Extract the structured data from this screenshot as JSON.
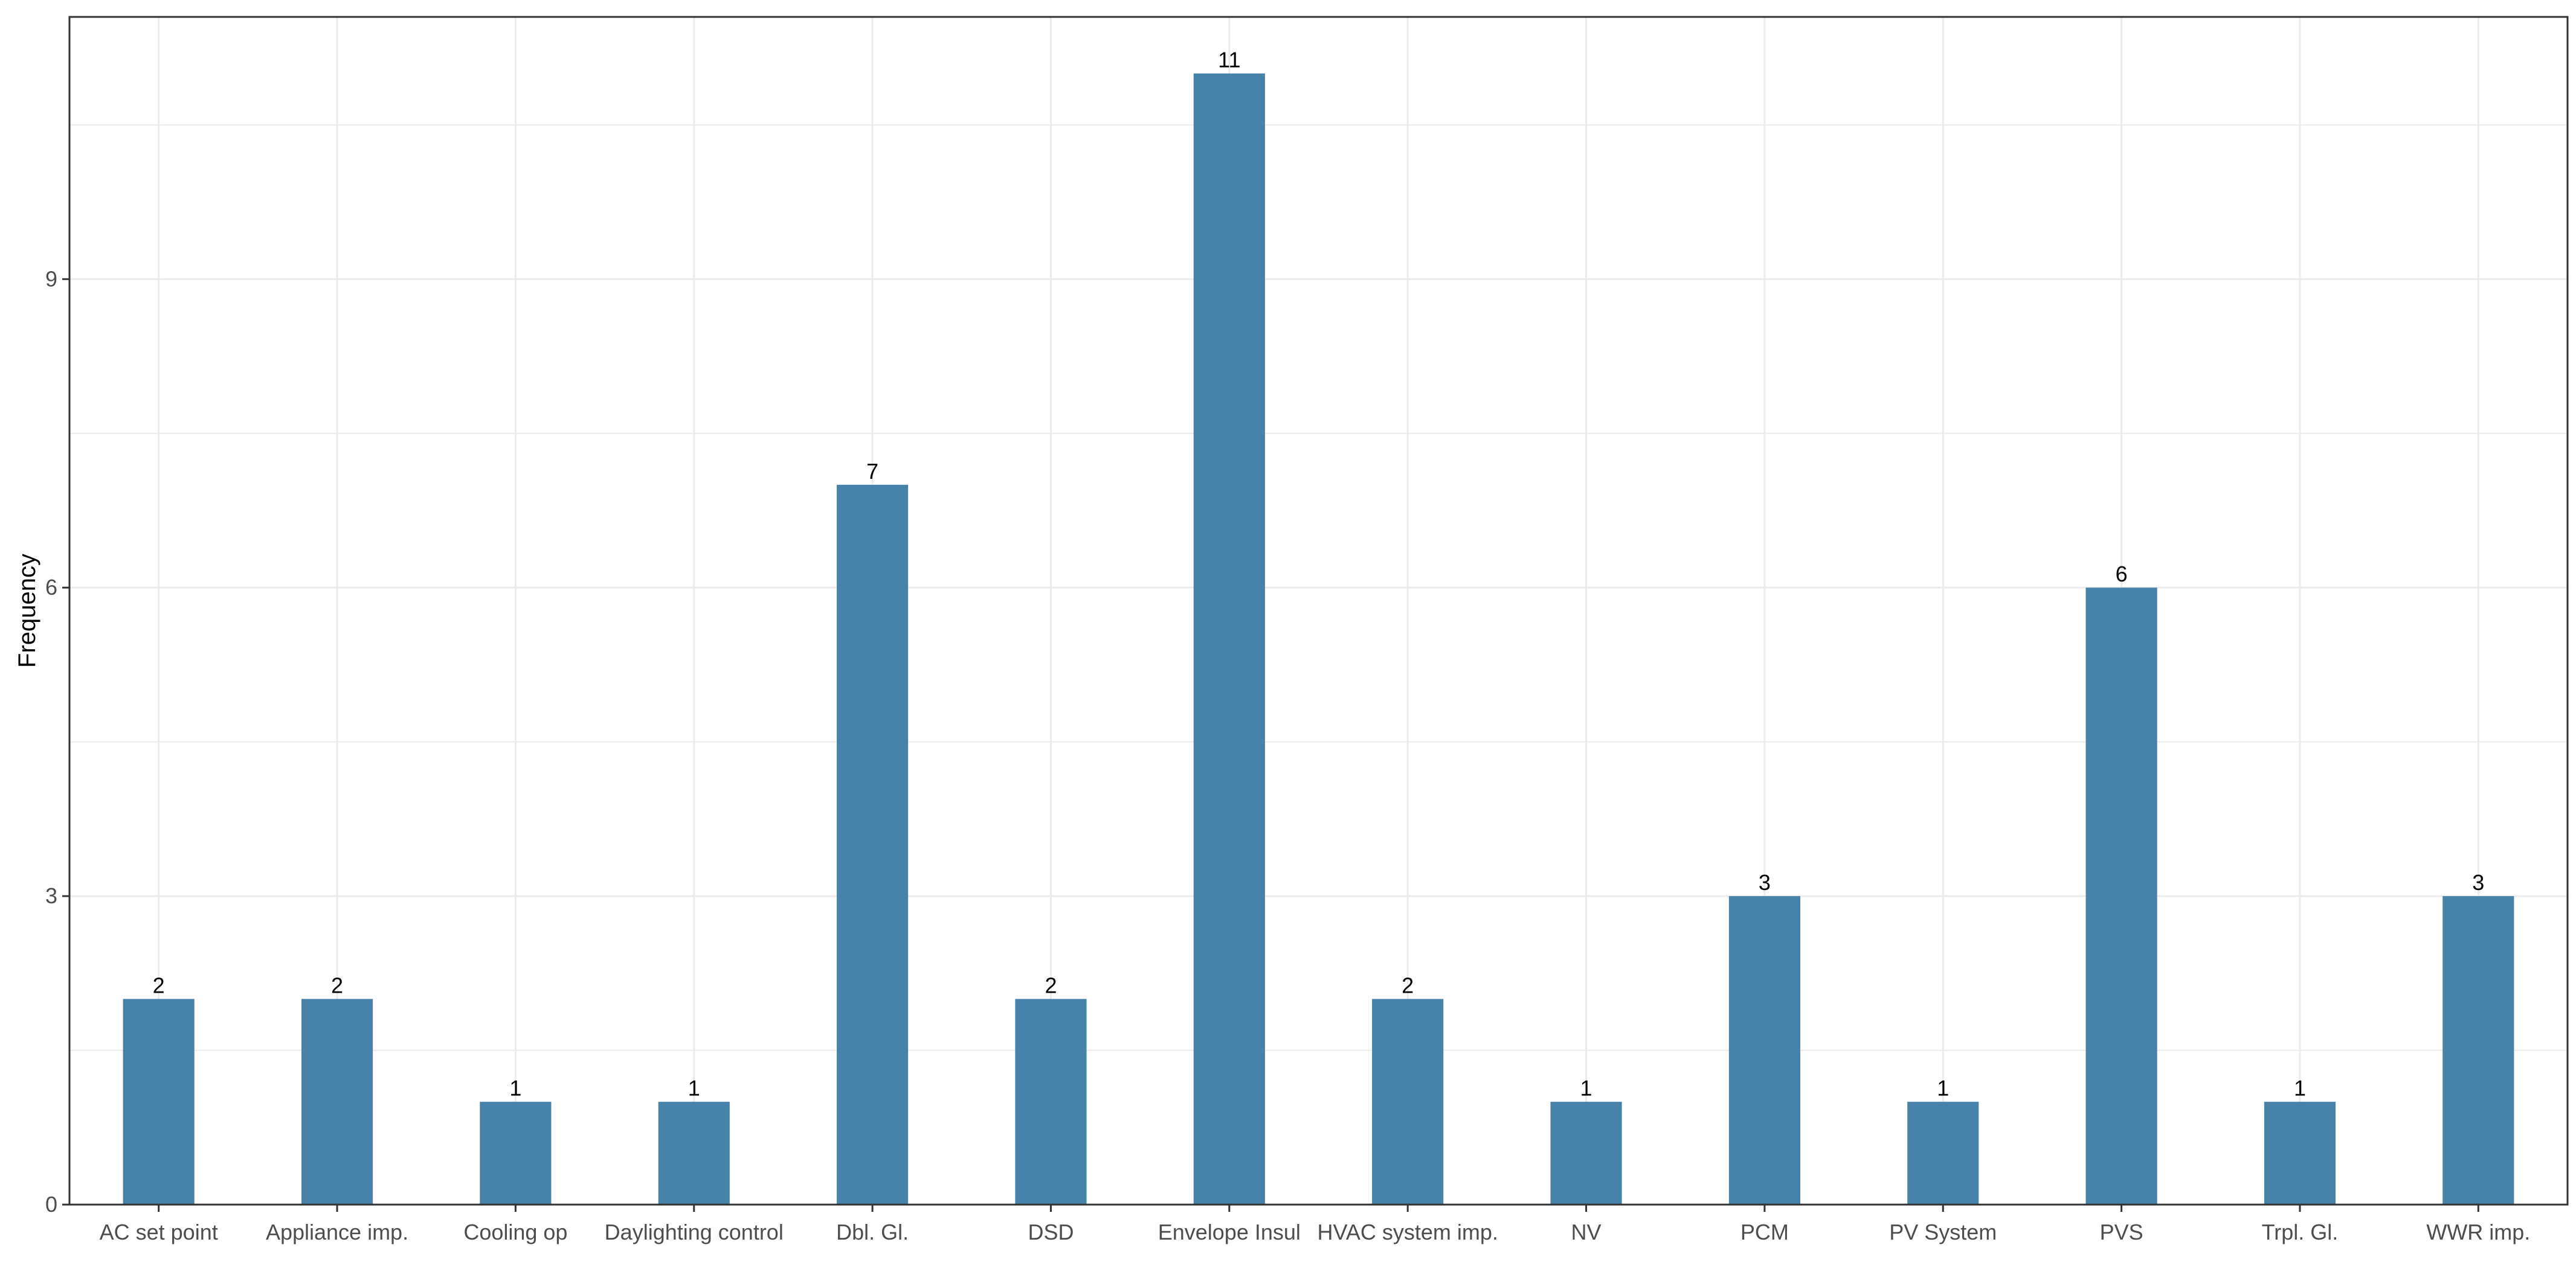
{
  "chart_data": {
    "type": "bar",
    "title": "",
    "xlabel": "",
    "ylabel": "Frequency",
    "categories": [
      "AC set point",
      "Appliance imp.",
      "Cooling op",
      "Daylighting control",
      "Dbl. Gl.",
      "DSD",
      "Envelope Insul",
      "HVAC system imp.",
      "NV",
      "PCM",
      "PV System",
      "PVS",
      "Trpl. Gl.",
      "WWR imp."
    ],
    "values": [
      2,
      2,
      1,
      1,
      7,
      2,
      11,
      2,
      1,
      3,
      1,
      6,
      1,
      3
    ],
    "data_labels": [
      "2",
      "2",
      "1",
      "1",
      "7",
      "2",
      "11",
      "2",
      "1",
      "3",
      "1",
      "6",
      "1",
      "3"
    ],
    "ylim": [
      0,
      11.55
    ],
    "y_ticks": [
      0,
      3,
      6,
      9
    ],
    "y_tick_labels": [
      "0",
      "3",
      "6",
      "9"
    ],
    "grid": true,
    "legend": "none",
    "colors": {
      "bar": "#4682A9",
      "grid": "#ebebeb",
      "panel_border": "#333333",
      "tick_text": "#4d4d4d"
    }
  }
}
